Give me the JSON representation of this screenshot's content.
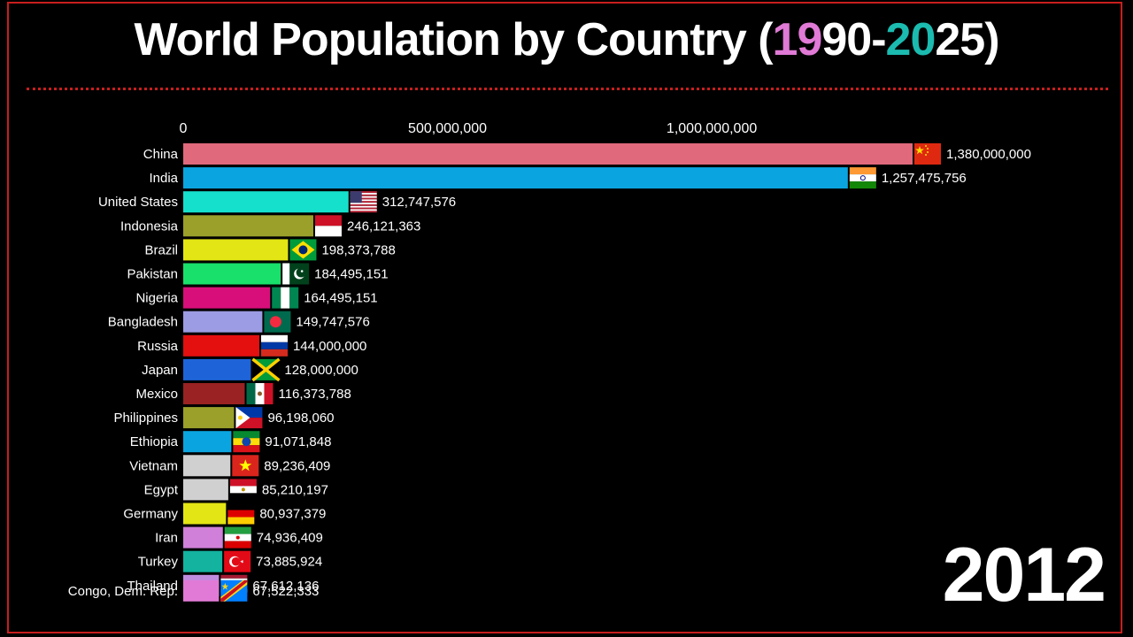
{
  "title": {
    "prefix": "World Population by Country (",
    "y1a": "19",
    "y1b": "90",
    "dash": "-",
    "y2a": "20",
    "y2b": "25",
    "suffix": ")"
  },
  "year": "2012",
  "chart_data": {
    "type": "bar",
    "orientation": "horizontal",
    "xticks": [
      0,
      500000000,
      1000000000
    ],
    "xtick_labels": [
      "0",
      "500,000,000",
      "1,000,000,000"
    ],
    "xlim": [
      0,
      1380000000
    ],
    "bars": [
      {
        "name": "China",
        "value": 1380000000,
        "label": "1,380,000,000",
        "color": "#e0697c",
        "flag": "china"
      },
      {
        "name": "India",
        "value": 1257475756,
        "label": "1,257,475,756",
        "color": "#0aa5e0",
        "flag": "india"
      },
      {
        "name": "United States",
        "value": 312747576,
        "label": "312,747,576",
        "color": "#15e0cc",
        "flag": "usa"
      },
      {
        "name": "Indonesia",
        "value": 246121363,
        "label": "246,121,363",
        "color": "#9aa02a",
        "flag": "indonesia"
      },
      {
        "name": "Brazil",
        "value": 198373788,
        "label": "198,373,788",
        "color": "#e3e514",
        "flag": "brazil"
      },
      {
        "name": "Pakistan",
        "value": 184495151,
        "label": "184,495,151",
        "color": "#18e06a",
        "flag": "pakistan"
      },
      {
        "name": "Nigeria",
        "value": 164495151,
        "label": "164,495,151",
        "color": "#d80f7a",
        "flag": "nigeria"
      },
      {
        "name": "Bangladesh",
        "value": 149747576,
        "label": "149,747,576",
        "color": "#9c9ce4",
        "flag": "bangladesh"
      },
      {
        "name": "Russia",
        "value": 144000000,
        "label": "144,000,000",
        "color": "#e40f0f",
        "flag": "russia"
      },
      {
        "name": "Japan",
        "value": 128000000,
        "label": "128,000,000",
        "color": "#1e64d8",
        "flag": "jamaica"
      },
      {
        "name": "Mexico",
        "value": 116373788,
        "label": "116,373,788",
        "color": "#9a2222",
        "flag": "mexico"
      },
      {
        "name": "Philippines",
        "value": 96198060,
        "label": "96,198,060",
        "color": "#9aa02a",
        "flag": "philippines"
      },
      {
        "name": "Ethiopia",
        "value": 91071848,
        "label": "91,071,848",
        "color": "#0aa5e0",
        "flag": "ethiopia"
      },
      {
        "name": "Vietnam",
        "value": 89236409,
        "label": "89,236,409",
        "color": "#d0d0d0",
        "flag": "vietnam"
      },
      {
        "name": "Egypt",
        "value": 85210197,
        "label": "85,210,197",
        "color": "#d0d0d0",
        "flag": "egypt"
      },
      {
        "name": "Germany",
        "value": 80937379,
        "label": "80,937,379",
        "color": "#e3e514",
        "flag": "germany"
      },
      {
        "name": "Iran",
        "value": 74936409,
        "label": "74,936,409",
        "color": "#d080d8",
        "flag": "iran"
      },
      {
        "name": "Turkey",
        "value": 73885924,
        "label": "73,885,924",
        "color": "#13b3a0",
        "flag": "turkey"
      },
      {
        "name": "Thailand",
        "value": 67612136,
        "label": "67,612,136",
        "color": "#c08ce0",
        "flag": "thailand"
      },
      {
        "name": "Congo, Dem. Rep.",
        "value": 67522333,
        "label": "67,522,333",
        "color": "#e07ad6",
        "flag": "drc"
      }
    ]
  }
}
